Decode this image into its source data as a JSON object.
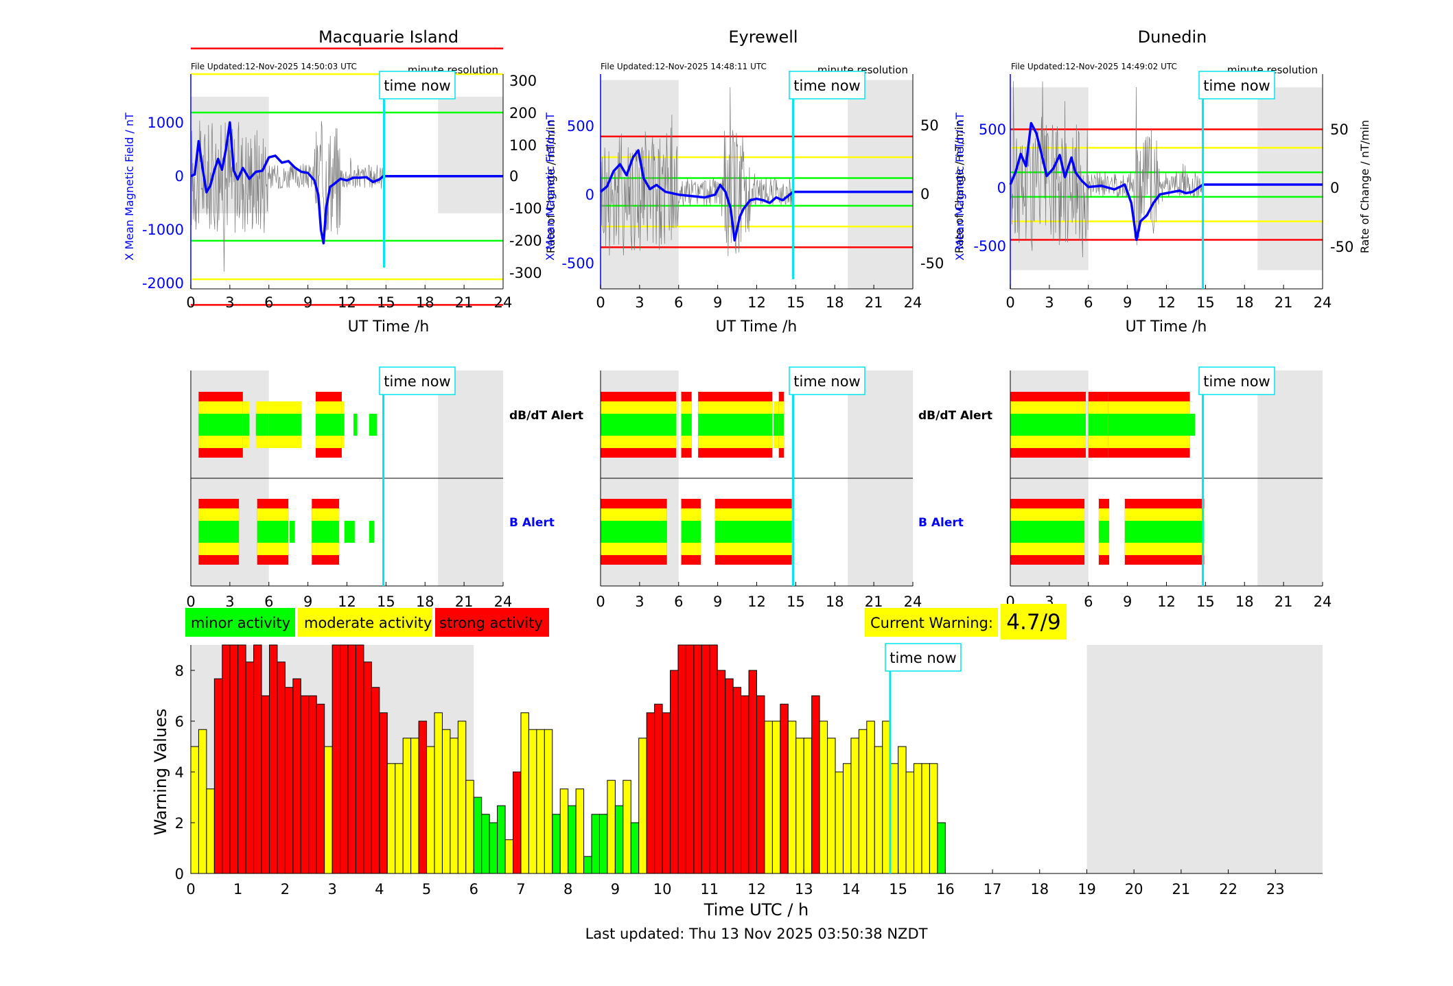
{
  "page": {
    "footer": "Last updated: Thu 13 Nov 2025 03:50:38 NZDT"
  },
  "stations": [
    {
      "name": "Macquarie Island",
      "file_updated": "File Updated:12-Nov-2025 14:50:03 UTC",
      "resolution": "minute resolution",
      "time_now_label": "time now",
      "left_ylabel": "X Mean Magnetic Field / nT",
      "right_ylabel": "Rate of Change / nT/min",
      "xlabel": "UT Time /h",
      "left_ticks": [
        "1000",
        "0",
        "-1000",
        "-2000"
      ],
      "right_ticks": [
        "300",
        "200",
        "100",
        "0",
        "-100",
        "-200",
        "-300"
      ]
    },
    {
      "name": "Eyrewell",
      "file_updated": "File Updated:12-Nov-2025 14:48:11 UTC",
      "resolution": "minute resolution",
      "time_now_label": "time now",
      "left_ylabel": "X Mean Magnetic Field / nT",
      "right_ylabel": "Rate of Change / nT/min",
      "xlabel": "UT Time /h",
      "left_ticks": [
        "500",
        "0",
        "-500"
      ],
      "right_ticks": [
        "50",
        "0",
        "-50"
      ]
    },
    {
      "name": "Dunedin",
      "file_updated": "File Updated:12-Nov-2025 14:49:02 UTC",
      "resolution": "minute resolution",
      "time_now_label": "time now",
      "left_ylabel": "X Mean Magnetic Field / nT",
      "right_ylabel": "Rate of Change / nT/min",
      "xlabel": "UT Time /h",
      "left_ticks": [
        "500",
        "0",
        "-500"
      ],
      "right_ticks": [
        "50",
        "0",
        "-50"
      ]
    }
  ],
  "alerts": {
    "dbdt_label": "dB/dT Alert",
    "b_label": "B Alert",
    "time_now_label": "time now",
    "x_ticks": [
      "0",
      "3",
      "6",
      "9",
      "12",
      "15",
      "18",
      "21",
      "24"
    ]
  },
  "legend": {
    "minor": "minor activity",
    "moderate": "moderate activity",
    "strong": "strong activity"
  },
  "current_warning": {
    "label": "Current Warning:",
    "value": "4.7/9"
  },
  "colors": {
    "minor": "#00ff00",
    "moderate": "#ffff00",
    "strong": "#ff0000",
    "field_line": "#0000ff",
    "time_now": "#00e5ee",
    "night_shade": "#e6e6e6"
  },
  "chart_data": [
    {
      "type": "line",
      "title": "Macquarie Island",
      "xlabel": "UT Time /h",
      "ylabel": "X Mean Magnetic Field / nT",
      "y2label": "Rate of Change / nT/min",
      "xlim": [
        0,
        24
      ],
      "ylim": [
        -2100,
        1900
      ],
      "y2lim": [
        -350,
        320
      ],
      "x_ticks": [
        0,
        3,
        6,
        9,
        12,
        15,
        18,
        21,
        24
      ],
      "time_now": 14.85,
      "night_shading": [
        [
          0,
          6
        ],
        [
          19,
          24
        ]
      ],
      "field_series": [
        [
          0.0,
          0
        ],
        [
          0.3,
          30
        ],
        [
          0.6,
          650
        ],
        [
          0.9,
          150
        ],
        [
          1.2,
          -300
        ],
        [
          1.5,
          -180
        ],
        [
          1.8,
          100
        ],
        [
          2.1,
          320
        ],
        [
          2.4,
          120
        ],
        [
          2.7,
          500
        ],
        [
          3.0,
          1000
        ],
        [
          3.3,
          100
        ],
        [
          3.6,
          -60
        ],
        [
          4.0,
          150
        ],
        [
          4.5,
          -50
        ],
        [
          5.0,
          80
        ],
        [
          5.5,
          100
        ],
        [
          6.0,
          350
        ],
        [
          6.5,
          380
        ],
        [
          7.0,
          250
        ],
        [
          7.5,
          280
        ],
        [
          8.0,
          160
        ],
        [
          8.5,
          80
        ],
        [
          9.0,
          60
        ],
        [
          9.5,
          -80
        ],
        [
          9.8,
          -350
        ],
        [
          10.0,
          -1000
        ],
        [
          10.2,
          -1250
        ],
        [
          10.4,
          -600
        ],
        [
          10.7,
          -200
        ],
        [
          11.0,
          -150
        ],
        [
          11.5,
          -50
        ],
        [
          12.0,
          -80
        ],
        [
          12.5,
          -30
        ],
        [
          13.0,
          -30
        ],
        [
          13.5,
          -20
        ],
        [
          14.0,
          -110
        ],
        [
          14.5,
          -60
        ],
        [
          14.8,
          0
        ],
        [
          24.0,
          0
        ]
      ],
      "thresholds": {
        "strong": [
          -400,
          400
        ],
        "moderate": [
          -320,
          320
        ],
        "minor": [
          -200,
          200
        ]
      }
    },
    {
      "type": "line",
      "title": "Eyrewell",
      "xlabel": "UT Time /h",
      "ylabel": "X Mean Magnetic Field / nT",
      "y2label": "Rate of Change / nT/min",
      "xlim": [
        0,
        24
      ],
      "ylim": [
        -700,
        850
      ],
      "y2lim": [
        -70,
        85
      ],
      "x_ticks": [
        0,
        3,
        6,
        9,
        12,
        15,
        18,
        21,
        24
      ],
      "time_now": 14.8,
      "night_shading": [
        [
          0,
          6
        ],
        [
          19,
          24
        ]
      ],
      "field_series": [
        [
          0.0,
          0
        ],
        [
          0.5,
          40
        ],
        [
          1.0,
          150
        ],
        [
          1.5,
          200
        ],
        [
          2.0,
          120
        ],
        [
          2.5,
          250
        ],
        [
          2.9,
          300
        ],
        [
          3.3,
          100
        ],
        [
          3.8,
          20
        ],
        [
          4.3,
          50
        ],
        [
          5.0,
          0
        ],
        [
          6.0,
          -20
        ],
        [
          7.0,
          -30
        ],
        [
          8.0,
          -40
        ],
        [
          8.8,
          -20
        ],
        [
          9.2,
          50
        ],
        [
          9.6,
          0
        ],
        [
          10.0,
          -120
        ],
        [
          10.3,
          -350
        ],
        [
          10.7,
          -180
        ],
        [
          11.0,
          -120
        ],
        [
          11.5,
          -60
        ],
        [
          12.0,
          -50
        ],
        [
          12.5,
          -60
        ],
        [
          13.0,
          -80
        ],
        [
          13.5,
          -40
        ],
        [
          14.0,
          -60
        ],
        [
          14.8,
          0
        ],
        [
          24.0,
          0
        ]
      ],
      "thresholds": {
        "strong": [
          -40,
          40
        ],
        "moderate": [
          -25,
          25
        ],
        "minor": [
          -10,
          10
        ]
      }
    },
    {
      "type": "line",
      "title": "Dunedin",
      "xlabel": "UT Time /h",
      "ylabel": "X Mean Magnetic Field / nT",
      "y2label": "Rate of Change / nT/min",
      "xlim": [
        0,
        24
      ],
      "ylim": [
        -850,
        900
      ],
      "y2lim": [
        -85,
        90
      ],
      "x_ticks": [
        0,
        3,
        6,
        9,
        12,
        15,
        18,
        21,
        24
      ],
      "time_now": 14.8,
      "night_shading": [
        [
          0,
          6
        ],
        [
          19,
          24
        ]
      ],
      "field_series": [
        [
          0.0,
          0
        ],
        [
          0.4,
          100
        ],
        [
          0.8,
          250
        ],
        [
          1.2,
          150
        ],
        [
          1.6,
          500
        ],
        [
          2.0,
          420
        ],
        [
          2.4,
          250
        ],
        [
          2.8,
          70
        ],
        [
          3.3,
          130
        ],
        [
          3.8,
          240
        ],
        [
          4.2,
          60
        ],
        [
          4.7,
          220
        ],
        [
          5.0,
          100
        ],
        [
          5.5,
          30
        ],
        [
          6.0,
          -20
        ],
        [
          7.0,
          -10
        ],
        [
          8.0,
          -40
        ],
        [
          8.8,
          0
        ],
        [
          9.3,
          -150
        ],
        [
          9.7,
          -450
        ],
        [
          10.0,
          -300
        ],
        [
          10.5,
          -250
        ],
        [
          11.0,
          -150
        ],
        [
          11.5,
          -80
        ],
        [
          12.0,
          -70
        ],
        [
          12.5,
          -60
        ],
        [
          13.0,
          -50
        ],
        [
          13.5,
          -70
        ],
        [
          14.0,
          -60
        ],
        [
          14.8,
          0
        ],
        [
          24.0,
          0
        ]
      ],
      "thresholds": {
        "strong": [
          -45,
          45
        ],
        "moderate": [
          -30,
          30
        ],
        "minor": [
          -10,
          10
        ]
      }
    },
    {
      "type": "bar",
      "title": "Warning Values",
      "xlabel": "Time UTC / h",
      "ylabel": "Warning Values",
      "xlim": [
        0,
        24
      ],
      "ylim": [
        0,
        9
      ],
      "x_ticks": [
        0,
        1,
        2,
        3,
        4,
        5,
        6,
        7,
        8,
        9,
        10,
        11,
        12,
        13,
        14,
        15,
        16,
        17,
        18,
        19,
        20,
        21,
        22,
        23
      ],
      "y_ticks": [
        0,
        2,
        4,
        6,
        8
      ],
      "bin_hours": 0.166667,
      "time_now": 14.83,
      "time_now_label": "time now",
      "night_shading": [
        [
          0,
          6
        ],
        [
          19,
          24
        ]
      ],
      "values": [
        5.0,
        5.67,
        3.33,
        7.67,
        9.0,
        9.0,
        9.0,
        8.33,
        9.0,
        7.0,
        9.0,
        8.33,
        7.33,
        7.67,
        7.0,
        7.0,
        6.67,
        5.0,
        9.0,
        9.0,
        9.0,
        9.0,
        8.33,
        7.33,
        6.33,
        4.33,
        4.33,
        5.33,
        5.33,
        6.0,
        5.0,
        6.33,
        5.67,
        5.33,
        6.0,
        3.67,
        3.0,
        2.33,
        2.0,
        2.67,
        1.33,
        4.0,
        6.33,
        5.67,
        5.67,
        5.67,
        2.33,
        3.33,
        2.67,
        3.33,
        0.67,
        2.33,
        2.33,
        3.67,
        2.67,
        3.67,
        2.0,
        5.33,
        6.33,
        6.67,
        6.33,
        8.0,
        9.0,
        9.0,
        9.0,
        9.0,
        9.0,
        8.0,
        7.67,
        7.33,
        7.0,
        8.0,
        7.0,
        6.0,
        6.0,
        6.67,
        6.0,
        5.33,
        5.33,
        7.0,
        6.0,
        5.33,
        4.0,
        4.33,
        5.33,
        5.67,
        6.0,
        5.0,
        6.0,
        4.33,
        5.0,
        4.0,
        4.33,
        4.33,
        4.33,
        2.0
      ],
      "levels": [
        1,
        1,
        1,
        2,
        2,
        2,
        2,
        2,
        2,
        2,
        2,
        2,
        2,
        2,
        2,
        2,
        2,
        1,
        2,
        2,
        2,
        2,
        2,
        2,
        2,
        1,
        1,
        1,
        1,
        2,
        1,
        1,
        1,
        1,
        1,
        1,
        0,
        0,
        0,
        0,
        1,
        2,
        1,
        1,
        1,
        1,
        0,
        1,
        0,
        1,
        0,
        0,
        0,
        1,
        0,
        1,
        0,
        1,
        2,
        2,
        2,
        2,
        2,
        2,
        2,
        2,
        2,
        2,
        2,
        2,
        2,
        2,
        2,
        1,
        1,
        2,
        1,
        1,
        1,
        2,
        1,
        1,
        1,
        1,
        1,
        1,
        1,
        1,
        1,
        1,
        1,
        1,
        1,
        1,
        1,
        0
      ]
    }
  ]
}
